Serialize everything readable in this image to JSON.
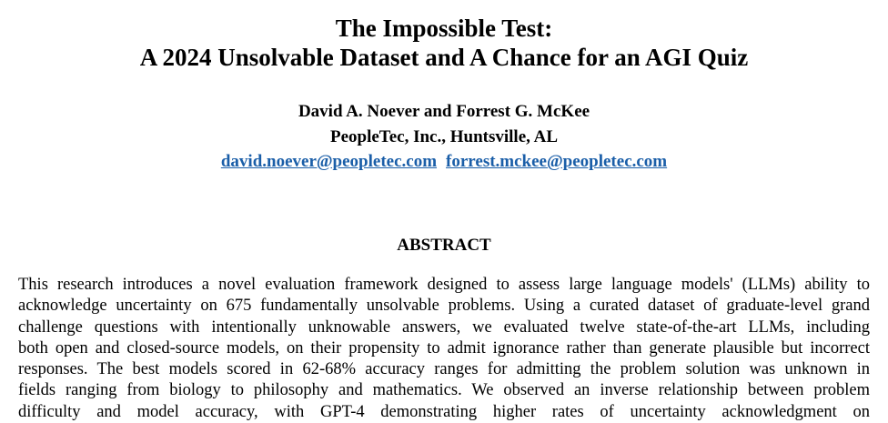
{
  "paper": {
    "title_line1": "The Impossible Test:",
    "title_line2": "A 2024 Unsolvable Dataset and A Chance for an AGI Quiz",
    "authors": "David A. Noever and Forrest G. McKee",
    "affiliation": "PeopleTec, Inc., Huntsville, AL",
    "emails": [
      "david.noever@peopletec.com",
      "forrest.mckee@peopletec.com"
    ],
    "link_color": "#1a5ea8",
    "abstract_heading": "ABSTRACT",
    "abstract_lines": [
      "This research introduces a novel evaluation framework designed to assess large language models' (LLMs) ability to",
      "acknowledge uncertainty on 675 fundamentally unsolvable problems. Using a curated dataset of graduate-level grand",
      "challenge questions with intentionally unknowable answers, we evaluated twelve state-of-the-art LLMs, including",
      "both open and closed-source models, on their propensity to admit ignorance rather than generate plausible but incorrect",
      "responses. The best models scored in 62-68% accuracy ranges for admitting the problem solution was unknown in",
      "fields ranging from biology to philosophy and mathematics. We observed an inverse relationship between problem",
      "difficulty and model accuracy, with GPT-4 demonstrating higher rates of uncertainty acknowledgment on"
    ]
  }
}
